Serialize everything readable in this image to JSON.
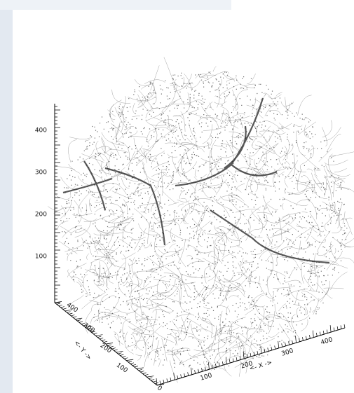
{
  "z_axis": {
    "ticks": [
      "100",
      "200",
      "300",
      "400"
    ]
  },
  "y_axis": {
    "ticks": [
      "0",
      "100",
      "200",
      "300",
      "400"
    ],
    "label": "<- Y ->"
  },
  "x_axis": {
    "ticks": [
      "100",
      "200",
      "300",
      "400"
    ],
    "label": "<- X ->"
  }
}
